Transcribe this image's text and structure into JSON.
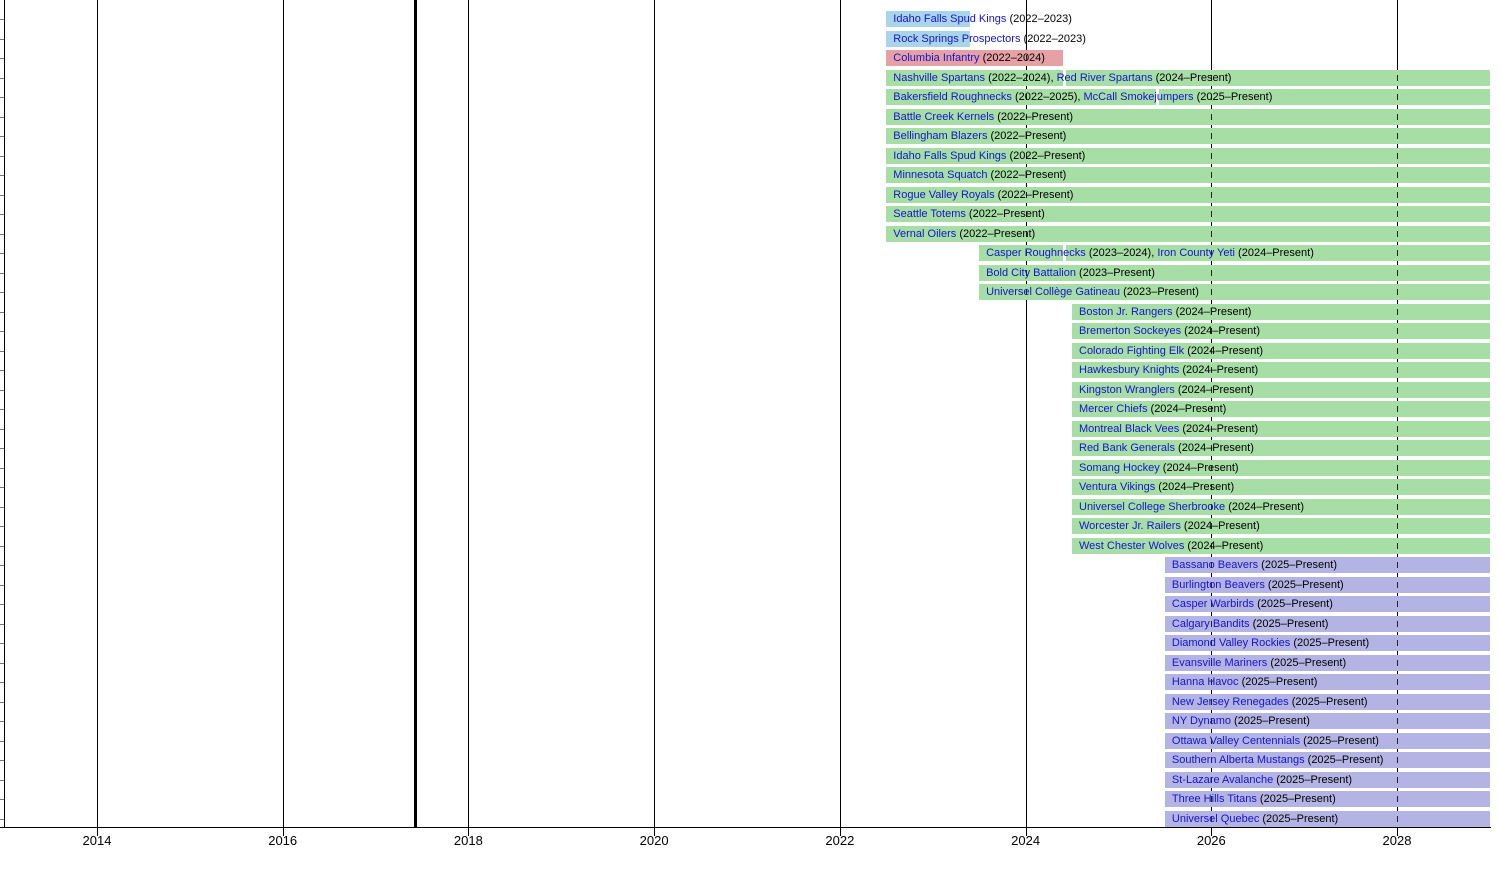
{
  "colors": {
    "powderblue": "#a9d4e9",
    "pink": "#e5a1a6",
    "green": "#a6dea6",
    "purple": "#b4b4e4",
    "link_blue": "#1414cc",
    "grid": "#000000",
    "dash": "#222222",
    "row_tick": "#777777"
  },
  "chart_data": {
    "type": "timeline",
    "x_axis": {
      "tick_years": [
        2014,
        2016,
        2018,
        2020,
        2022,
        2024,
        2026,
        2028
      ],
      "min_year": 2013,
      "max_year": 2029,
      "grid": true
    },
    "reference_lines": [
      {
        "year": 2013.0,
        "style": "thin"
      },
      {
        "year": 2017.42,
        "style": "thick"
      }
    ],
    "rows": [
      {
        "color": "powderblue",
        "teams": [
          {
            "name": "Idaho Falls Spud Kings",
            "years": "2022–2023"
          }
        ],
        "segments": [
          {
            "from": 2022.5,
            "to": 2023.4
          }
        ]
      },
      {
        "color": "powderblue",
        "teams": [
          {
            "name": "Rock Springs Prospectors",
            "years": "2022–2023"
          }
        ],
        "segments": [
          {
            "from": 2022.5,
            "to": 2023.4
          }
        ]
      },
      {
        "color": "pink",
        "teams": [
          {
            "name": "Columbia Infantry",
            "years": "2022–2024"
          }
        ],
        "segments": [
          {
            "from": 2022.5,
            "to": 2024.4
          }
        ]
      },
      {
        "color": "green",
        "teams": [
          {
            "name": "Nashville Spartans",
            "years": "2022–2024"
          },
          {
            "name": "Red River Spartans",
            "years": "2024–Present"
          }
        ],
        "segments": [
          {
            "from": 2022.5,
            "to": 2024.4
          },
          {
            "from": 2024.44,
            "to": 2029
          }
        ]
      },
      {
        "color": "green",
        "teams": [
          {
            "name": "Bakersfield Roughnecks",
            "years": "2022–2025"
          },
          {
            "name": "McCall Smokejumpers",
            "years": "2025–Present"
          }
        ],
        "segments": [
          {
            "from": 2022.5,
            "to": 2025.4
          },
          {
            "from": 2025.44,
            "to": 2029
          }
        ]
      },
      {
        "color": "green",
        "teams": [
          {
            "name": "Battle Creek Kernels",
            "years": "2022–Present"
          }
        ],
        "segments": [
          {
            "from": 2022.5,
            "to": 2029
          }
        ]
      },
      {
        "color": "green",
        "teams": [
          {
            "name": "Bellingham Blazers",
            "years": "2022–Present"
          }
        ],
        "segments": [
          {
            "from": 2022.5,
            "to": 2029
          }
        ]
      },
      {
        "color": "green",
        "teams": [
          {
            "name": "Idaho Falls Spud Kings",
            "years": "2022–Present"
          }
        ],
        "segments": [
          {
            "from": 2022.5,
            "to": 2029
          }
        ]
      },
      {
        "color": "green",
        "teams": [
          {
            "name": "Minnesota Squatch",
            "years": "2022–Present"
          }
        ],
        "segments": [
          {
            "from": 2022.5,
            "to": 2029
          }
        ]
      },
      {
        "color": "green",
        "teams": [
          {
            "name": "Rogue Valley Royals",
            "years": "2022–Present"
          }
        ],
        "segments": [
          {
            "from": 2022.5,
            "to": 2029
          }
        ]
      },
      {
        "color": "green",
        "teams": [
          {
            "name": "Seattle Totems",
            "years": "2022–Present"
          }
        ],
        "segments": [
          {
            "from": 2022.5,
            "to": 2029
          }
        ]
      },
      {
        "color": "green",
        "teams": [
          {
            "name": "Vernal Oilers",
            "years": "2022–Present"
          }
        ],
        "segments": [
          {
            "from": 2022.5,
            "to": 2029
          }
        ]
      },
      {
        "color": "green",
        "teams": [
          {
            "name": "Casper Roughnecks",
            "years": "2023–2024"
          },
          {
            "name": "Iron County Yeti",
            "years": "2024–Present"
          }
        ],
        "segments": [
          {
            "from": 2023.5,
            "to": 2024.4
          },
          {
            "from": 2024.44,
            "to": 2029
          }
        ]
      },
      {
        "color": "green",
        "teams": [
          {
            "name": "Bold City Battalion",
            "years": "2023–Present"
          }
        ],
        "segments": [
          {
            "from": 2023.5,
            "to": 2029
          }
        ]
      },
      {
        "color": "green",
        "teams": [
          {
            "name": "Universel Collège Gatineau",
            "years": "2023–Present"
          }
        ],
        "segments": [
          {
            "from": 2023.5,
            "to": 2029
          }
        ]
      },
      {
        "color": "green",
        "teams": [
          {
            "name": "Boston Jr. Rangers",
            "years": "2024–Present"
          }
        ],
        "segments": [
          {
            "from": 2024.5,
            "to": 2029
          }
        ]
      },
      {
        "color": "green",
        "teams": [
          {
            "name": "Bremerton Sockeyes",
            "years": "2024–Present"
          }
        ],
        "segments": [
          {
            "from": 2024.5,
            "to": 2029
          }
        ]
      },
      {
        "color": "green",
        "teams": [
          {
            "name": "Colorado Fighting Elk",
            "years": "2024–Present"
          }
        ],
        "segments": [
          {
            "from": 2024.5,
            "to": 2029
          }
        ]
      },
      {
        "color": "green",
        "teams": [
          {
            "name": "Hawkesbury Knights",
            "years": "2024–Present"
          }
        ],
        "segments": [
          {
            "from": 2024.5,
            "to": 2029
          }
        ]
      },
      {
        "color": "green",
        "teams": [
          {
            "name": "Kingston Wranglers",
            "years": "2024–Present"
          }
        ],
        "segments": [
          {
            "from": 2024.5,
            "to": 2029
          }
        ]
      },
      {
        "color": "green",
        "teams": [
          {
            "name": "Mercer Chiefs",
            "years": "2024–Present"
          }
        ],
        "segments": [
          {
            "from": 2024.5,
            "to": 2029
          }
        ]
      },
      {
        "color": "green",
        "teams": [
          {
            "name": "Montreal Black Vees",
            "years": "2024–Present"
          }
        ],
        "segments": [
          {
            "from": 2024.5,
            "to": 2029
          }
        ]
      },
      {
        "color": "green",
        "teams": [
          {
            "name": "Red Bank Generals",
            "years": "2024–Present"
          }
        ],
        "segments": [
          {
            "from": 2024.5,
            "to": 2029
          }
        ]
      },
      {
        "color": "green",
        "teams": [
          {
            "name": "Somang Hockey",
            "years": "2024–Present"
          }
        ],
        "segments": [
          {
            "from": 2024.5,
            "to": 2029
          }
        ]
      },
      {
        "color": "green",
        "teams": [
          {
            "name": "Ventura Vikings",
            "years": "2024–Present"
          }
        ],
        "segments": [
          {
            "from": 2024.5,
            "to": 2029
          }
        ]
      },
      {
        "color": "green",
        "teams": [
          {
            "name": "Universel College Sherbrooke",
            "years": "2024–Present"
          }
        ],
        "segments": [
          {
            "from": 2024.5,
            "to": 2029
          }
        ]
      },
      {
        "color": "green",
        "teams": [
          {
            "name": "Worcester Jr. Railers",
            "years": "2024–Present"
          }
        ],
        "segments": [
          {
            "from": 2024.5,
            "to": 2029
          }
        ]
      },
      {
        "color": "green",
        "teams": [
          {
            "name": "West Chester Wolves",
            "years": "2024–Present"
          }
        ],
        "segments": [
          {
            "from": 2024.5,
            "to": 2029
          }
        ]
      },
      {
        "color": "purple",
        "teams": [
          {
            "name": "Bassano Beavers",
            "years": "2025–Present"
          }
        ],
        "segments": [
          {
            "from": 2025.5,
            "to": 2029
          }
        ]
      },
      {
        "color": "purple",
        "teams": [
          {
            "name": "Burlington Beavers",
            "years": "2025–Present"
          }
        ],
        "segments": [
          {
            "from": 2025.5,
            "to": 2029
          }
        ]
      },
      {
        "color": "purple",
        "teams": [
          {
            "name": "Casper Warbirds",
            "years": "2025–Present"
          }
        ],
        "segments": [
          {
            "from": 2025.5,
            "to": 2029
          }
        ]
      },
      {
        "color": "purple",
        "teams": [
          {
            "name": "Calgary Bandits",
            "years": "2025–Present"
          }
        ],
        "segments": [
          {
            "from": 2025.5,
            "to": 2029
          }
        ]
      },
      {
        "color": "purple",
        "teams": [
          {
            "name": "Diamond Valley Rockies",
            "years": "2025–Present"
          }
        ],
        "segments": [
          {
            "from": 2025.5,
            "to": 2029
          }
        ]
      },
      {
        "color": "purple",
        "teams": [
          {
            "name": "Evansville Mariners",
            "years": "2025–Present"
          }
        ],
        "segments": [
          {
            "from": 2025.5,
            "to": 2029
          }
        ]
      },
      {
        "color": "purple",
        "teams": [
          {
            "name": "Hanna Havoc",
            "years": "2025–Present"
          }
        ],
        "segments": [
          {
            "from": 2025.5,
            "to": 2029
          }
        ]
      },
      {
        "color": "purple",
        "teams": [
          {
            "name": "New Jersey Renegades",
            "years": "2025–Present"
          }
        ],
        "segments": [
          {
            "from": 2025.5,
            "to": 2029
          }
        ]
      },
      {
        "color": "purple",
        "teams": [
          {
            "name": "NY Dynamo",
            "years": "2025–Present"
          }
        ],
        "segments": [
          {
            "from": 2025.5,
            "to": 2029
          }
        ]
      },
      {
        "color": "purple",
        "teams": [
          {
            "name": "Ottawa Valley Centennials",
            "years": "2025–Present"
          }
        ],
        "segments": [
          {
            "from": 2025.5,
            "to": 2029
          }
        ]
      },
      {
        "color": "purple",
        "teams": [
          {
            "name": "Southern Alberta Mustangs",
            "years": "2025–Present"
          }
        ],
        "segments": [
          {
            "from": 2025.5,
            "to": 2029
          }
        ]
      },
      {
        "color": "purple",
        "teams": [
          {
            "name": "St-Lazare Avalanche",
            "years": "2025–Present"
          }
        ],
        "segments": [
          {
            "from": 2025.5,
            "to": 2029
          }
        ]
      },
      {
        "color": "purple",
        "teams": [
          {
            "name": "Three Hills Titans",
            "years": "2025–Present"
          }
        ],
        "segments": [
          {
            "from": 2025.5,
            "to": 2029
          }
        ]
      },
      {
        "color": "purple",
        "teams": [
          {
            "name": "Universel Quebec",
            "years": "2025–Present"
          }
        ],
        "segments": [
          {
            "from": 2025.5,
            "to": 2029
          }
        ]
      }
    ]
  }
}
